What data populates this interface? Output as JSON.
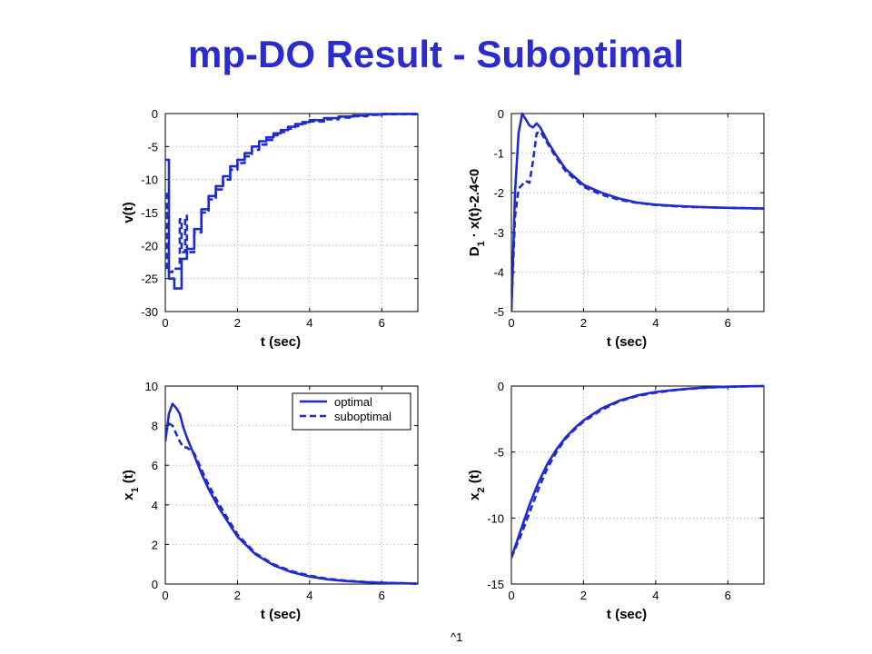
{
  "slide": {
    "title": "mp-DO Result - Suboptimal",
    "footer": "^1",
    "line_color": "#1f2bd0",
    "title_color": "#2b2bd0"
  },
  "chart_data": [
    {
      "type": "line",
      "id": "v",
      "xlabel": "t (sec)",
      "ylabel": "v(t)",
      "xlim": [
        0,
        7
      ],
      "ylim": [
        -30,
        0
      ],
      "xticks": [
        0,
        2,
        4,
        6
      ],
      "yticks": [
        0,
        -5,
        -10,
        -15,
        -20,
        -25,
        -30
      ],
      "grid": true,
      "series": [
        {
          "style": "solid",
          "step": true,
          "x": [
            0,
            0.1,
            0.1,
            0.25,
            0.25,
            0.45,
            0.45,
            0.6,
            0.6,
            0.8,
            0.8,
            1.0,
            1.0,
            1.2,
            1.2,
            1.4,
            1.4,
            1.6,
            1.6,
            1.8,
            1.8,
            2.0,
            2.0,
            2.2,
            2.2,
            2.4,
            2.4,
            2.6,
            2.6,
            2.8,
            2.8,
            3.0,
            3.0,
            3.2,
            3.2,
            3.4,
            3.4,
            3.6,
            3.6,
            3.8,
            3.8,
            4.0,
            4.0,
            4.4,
            4.4,
            4.8,
            4.8,
            5.2,
            5.2,
            5.6,
            5.6,
            6.0,
            6.0,
            7.0
          ],
          "y": [
            -7,
            -7,
            -25,
            -25,
            -26.5,
            -26.5,
            -22,
            -22,
            -20.5,
            -20.5,
            -17.5,
            -17.5,
            -14.5,
            -14.5,
            -12.5,
            -12.5,
            -11,
            -11,
            -9.5,
            -9.5,
            -8,
            -8,
            -7,
            -7,
            -6,
            -6,
            -5,
            -5,
            -4.2,
            -4.2,
            -3.6,
            -3.6,
            -3,
            -3,
            -2.5,
            -2.5,
            -2,
            -2,
            -1.6,
            -1.6,
            -1.3,
            -1.3,
            -1,
            -1,
            -0.7,
            -0.7,
            -0.45,
            -0.45,
            -0.3,
            -0.3,
            -0.15,
            -0.15,
            -0.05,
            -0.05
          ]
        },
        {
          "style": "dashed",
          "step": true,
          "x": [
            0.05,
            0.05,
            0.2,
            0.2,
            0.4,
            0.4,
            0.45,
            0.45,
            0.55,
            0.55,
            0.6,
            0.6,
            0.8,
            0.8,
            1.0,
            1.0,
            1.2,
            1.2,
            1.4,
            1.4,
            1.6,
            1.6,
            1.8,
            1.8,
            2.0,
            2.0,
            2.2,
            2.2,
            2.4,
            2.4,
            2.6,
            2.6,
            2.8,
            2.8,
            3.0,
            3.0,
            3.2,
            3.2,
            3.4,
            3.4,
            3.6,
            3.6,
            3.8,
            3.8,
            4.0,
            4.0,
            4.4,
            4.4,
            4.8,
            4.8,
            5.2,
            5.2,
            5.6,
            5.6,
            6.0,
            6.0,
            7.0
          ],
          "y": [
            -12,
            -24,
            -24,
            -23.5,
            -23.5,
            -16,
            -16,
            -21,
            -21,
            -15.5,
            -15.5,
            -21,
            -21,
            -18,
            -18,
            -15,
            -15,
            -13,
            -13,
            -11.5,
            -11.5,
            -10,
            -10,
            -8.5,
            -8.5,
            -7.5,
            -7.5,
            -6.5,
            -6.5,
            -5.5,
            -5.5,
            -4.7,
            -4.7,
            -4,
            -4,
            -3.3,
            -3.3,
            -2.8,
            -2.8,
            -2.3,
            -2.3,
            -1.9,
            -1.9,
            -1.5,
            -1.5,
            -1.2,
            -1.2,
            -0.9,
            -0.9,
            -0.6,
            -0.6,
            -0.4,
            -0.4,
            -0.2,
            -0.2,
            -0.1,
            -0.1
          ]
        }
      ]
    },
    {
      "type": "line",
      "id": "constraint",
      "xlabel": "t (sec)",
      "ylabel": "D_1 · x(t)-2.4<0",
      "xlim": [
        0,
        7
      ],
      "ylim": [
        -5,
        0
      ],
      "xticks": [
        0,
        2,
        4,
        6
      ],
      "yticks": [
        0,
        -1,
        -2,
        -3,
        -4,
        -5
      ],
      "grid": true,
      "series": [
        {
          "style": "solid",
          "x": [
            0,
            0.1,
            0.2,
            0.3,
            0.4,
            0.5,
            0.6,
            0.7,
            0.8,
            1.0,
            1.2,
            1.5,
            2.0,
            2.5,
            3.0,
            3.5,
            4.0,
            4.5,
            5.0,
            5.5,
            6.0,
            6.5,
            7.0
          ],
          "y": [
            -5,
            -2.0,
            -0.5,
            0.0,
            -0.15,
            -0.3,
            -0.35,
            -0.25,
            -0.35,
            -0.7,
            -1.0,
            -1.4,
            -1.8,
            -2.0,
            -2.15,
            -2.25,
            -2.3,
            -2.33,
            -2.35,
            -2.37,
            -2.38,
            -2.39,
            -2.4
          ]
        },
        {
          "style": "dashed",
          "x": [
            0,
            0.1,
            0.2,
            0.3,
            0.4,
            0.5,
            0.6,
            0.7,
            0.8,
            1.0,
            1.2,
            1.5,
            2.0,
            2.5,
            3.0,
            3.5,
            4.0,
            4.5,
            5.0,
            5.5,
            6.0,
            6.5,
            7.0
          ],
          "y": [
            -4.9,
            -2.6,
            -1.9,
            -1.8,
            -1.7,
            -1.75,
            -1.2,
            -0.5,
            -0.45,
            -0.75,
            -1.05,
            -1.45,
            -1.85,
            -2.05,
            -2.18,
            -2.26,
            -2.31,
            -2.34,
            -2.36,
            -2.37,
            -2.38,
            -2.39,
            -2.4
          ]
        }
      ]
    },
    {
      "type": "line",
      "id": "x1",
      "xlabel": "t (sec)",
      "ylabel": "x_1 (t)",
      "xlim": [
        0,
        7
      ],
      "ylim": [
        0,
        10
      ],
      "xticks": [
        0,
        2,
        4,
        6
      ],
      "yticks": [
        10,
        8,
        6,
        4,
        2,
        0
      ],
      "grid": true,
      "legend": {
        "position": "top-right",
        "entries": [
          {
            "label": "optimal",
            "style": "solid"
          },
          {
            "label": "suboptimal",
            "style": "dashed"
          }
        ]
      },
      "series": [
        {
          "name": "optimal",
          "style": "solid",
          "x": [
            0,
            0.1,
            0.2,
            0.3,
            0.4,
            0.5,
            0.6,
            0.8,
            1.0,
            1.2,
            1.5,
            2.0,
            2.5,
            3.0,
            3.5,
            4.0,
            4.5,
            5.0,
            5.5,
            6.0,
            6.5,
            7.0
          ],
          "y": [
            7.2,
            8.6,
            9.1,
            8.9,
            8.6,
            7.9,
            7.4,
            6.5,
            5.6,
            4.8,
            3.8,
            2.4,
            1.5,
            0.95,
            0.6,
            0.38,
            0.24,
            0.15,
            0.1,
            0.06,
            0.04,
            0.02
          ]
        },
        {
          "name": "suboptimal",
          "style": "dashed",
          "x": [
            0,
            0.1,
            0.2,
            0.3,
            0.4,
            0.5,
            0.6,
            0.8,
            1.0,
            1.2,
            1.5,
            2.0,
            2.5,
            3.0,
            3.5,
            4.0,
            4.5,
            5.0,
            5.5,
            6.0,
            6.5,
            7.0
          ],
          "y": [
            7.6,
            8.1,
            8.0,
            7.6,
            7.2,
            6.9,
            6.9,
            6.6,
            5.8,
            5.0,
            4.0,
            2.5,
            1.55,
            1.0,
            0.65,
            0.42,
            0.27,
            0.17,
            0.11,
            0.07,
            0.04,
            0.02
          ]
        }
      ]
    },
    {
      "type": "line",
      "id": "x2",
      "xlabel": "t (sec)",
      "ylabel": "x_2 (t)",
      "xlim": [
        0,
        7
      ],
      "ylim": [
        -15,
        0
      ],
      "xticks": [
        0,
        2,
        4,
        6
      ],
      "yticks": [
        0,
        -5,
        -10,
        -15
      ],
      "grid": true,
      "series": [
        {
          "style": "solid",
          "x": [
            0,
            0.25,
            0.5,
            0.75,
            1.0,
            1.25,
            1.5,
            1.75,
            2.0,
            2.5,
            3.0,
            3.5,
            4.0,
            4.5,
            5.0,
            5.5,
            6.0,
            6.5,
            7.0
          ],
          "y": [
            -13,
            -11.0,
            -9.0,
            -7.3,
            -5.9,
            -4.8,
            -3.9,
            -3.2,
            -2.6,
            -1.7,
            -1.1,
            -0.7,
            -0.45,
            -0.3,
            -0.18,
            -0.1,
            -0.05,
            -0.02,
            0
          ]
        },
        {
          "style": "dashed",
          "x": [
            0,
            0.25,
            0.5,
            0.75,
            1.0,
            1.25,
            1.5,
            1.75,
            2.0,
            2.5,
            3.0,
            3.5,
            4.0,
            4.5,
            5.0,
            5.5,
            6.0,
            6.5,
            7.0
          ],
          "y": [
            -13,
            -11.4,
            -9.6,
            -7.8,
            -6.2,
            -5.0,
            -4.0,
            -3.3,
            -2.7,
            -1.8,
            -1.15,
            -0.75,
            -0.5,
            -0.32,
            -0.2,
            -0.11,
            -0.06,
            -0.02,
            0
          ]
        }
      ]
    }
  ]
}
